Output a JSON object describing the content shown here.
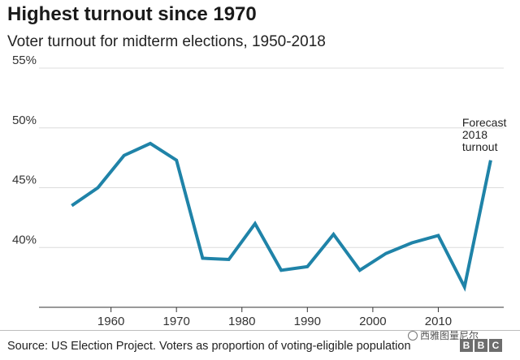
{
  "header": {
    "title": "Highest turnout since 1970",
    "subtitle": "Voter turnout for midterm elections, 1950-2018"
  },
  "footer": {
    "source": "Source: US Election Project. Voters as proportion of voting-eligible population",
    "watermark": "西雅图量尼尔",
    "logo": [
      "B",
      "B",
      "C"
    ]
  },
  "colors": {
    "line": "#1f83a8",
    "grid": "#dcdcdc",
    "axis": "#333333"
  },
  "chart_data": {
    "type": "line",
    "title": "Highest turnout since 1970",
    "subtitle": "Voter turnout for midterm elections, 1950-2018",
    "xlabel": "",
    "ylabel": "",
    "x": [
      1954,
      1958,
      1962,
      1966,
      1970,
      1974,
      1978,
      1982,
      1986,
      1990,
      1994,
      1998,
      2002,
      2006,
      2010,
      2014,
      2018
    ],
    "series": [
      {
        "name": "Turnout",
        "values": [
          43.5,
          45.0,
          47.7,
          48.7,
          47.3,
          39.1,
          39.0,
          42.0,
          38.1,
          38.4,
          41.1,
          38.1,
          39.5,
          40.4,
          41.0,
          36.7,
          47.3
        ]
      }
    ],
    "xlim": [
      1949,
      2020
    ],
    "ylim": [
      35,
      55
    ],
    "xticks": [
      1960,
      1970,
      1980,
      1990,
      2000,
      2010
    ],
    "xtick_labels": [
      "1960",
      "1970",
      "1980",
      "1990",
      "2000",
      "2010"
    ],
    "yticks": [
      40,
      45,
      50,
      55
    ],
    "ytick_labels": [
      "40%",
      "45%",
      "50%",
      "55%"
    ],
    "grid": true,
    "annotations": [
      {
        "x": 2018,
        "y": 47.3,
        "lines": [
          "Forecast",
          "2018",
          "turnout"
        ]
      }
    ]
  }
}
